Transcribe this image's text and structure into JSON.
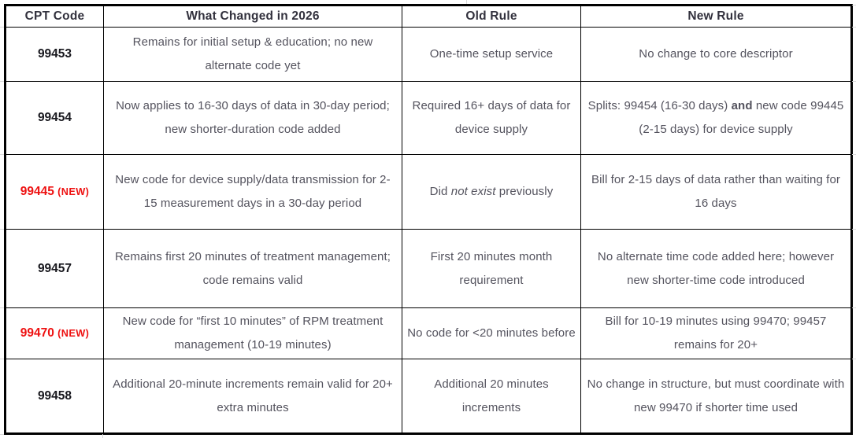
{
  "table": {
    "headers": [
      "CPT Code",
      "What Changed in 2026",
      "Old Rule",
      "New Rule"
    ],
    "rows": [
      {
        "code": "99453",
        "badge": "",
        "is_new": false,
        "changed": [
          {
            "t": "Remains for initial setup & education; no new alternate code yet"
          }
        ],
        "old_rule": [
          {
            "t": "One-time setup service"
          }
        ],
        "new_rule": [
          {
            "t": "No change to core descriptor"
          }
        ]
      },
      {
        "code": "99454",
        "badge": "",
        "is_new": false,
        "changed": [
          {
            "t": "Now applies to 16-30 days of data in 30-day period; new shorter-duration code added"
          }
        ],
        "old_rule": [
          {
            "t": "Required 16+ days of data for device supply"
          }
        ],
        "new_rule": [
          {
            "t": "Splits: 99454 (16-30 days) "
          },
          {
            "t": "and",
            "b": true
          },
          {
            "t": " new code 99445 (2-15 days) for device supply"
          }
        ]
      },
      {
        "code": "99445",
        "badge": "(NEW)",
        "is_new": true,
        "changed": [
          {
            "t": "New code for device supply/data transmission for 2-15 measurement days in a 30-day period"
          }
        ],
        "old_rule": [
          {
            "t": "Did "
          },
          {
            "t": "not exist",
            "i": true
          },
          {
            "t": " previously"
          }
        ],
        "new_rule": [
          {
            "t": "Bill for 2-15 days of data rather than waiting for 16 days"
          }
        ]
      },
      {
        "code": "99457",
        "badge": "",
        "is_new": false,
        "changed": [
          {
            "t": "Remains first 20 minutes of treatment management; code remains valid"
          }
        ],
        "old_rule": [
          {
            "t": "First 20 minutes month requirement"
          }
        ],
        "new_rule": [
          {
            "t": "No alternate time code added here; however new shorter-time code introduced"
          }
        ]
      },
      {
        "code": "99470",
        "badge": "(NEW)",
        "is_new": true,
        "changed": [
          {
            "t": "New code for “first 10 minutes” of RPM treatment management (10-19 minutes)"
          }
        ],
        "old_rule": [
          {
            "t": "No code for <20 minutes before"
          }
        ],
        "new_rule": [
          {
            "t": "Bill for 10-19 minutes using 99470; 99457 remains for 20+"
          }
        ]
      },
      {
        "code": "99458",
        "badge": "",
        "is_new": false,
        "changed": [
          {
            "t": "Additional 20-minute increments remain valid for 20+ extra minutes"
          }
        ],
        "old_rule": [
          {
            "t": "Additional 20 minutes increments"
          }
        ],
        "new_rule": [
          {
            "t": "No change in structure, but must coordinate with new 99470 if shorter time used"
          }
        ]
      }
    ]
  },
  "colors": {
    "border": "#000000",
    "header_text": "#32313d",
    "body_text": "#54535e",
    "code_text": "#17171d",
    "new_code_red": "#ee1111",
    "gridline": "#d9d9d9"
  }
}
